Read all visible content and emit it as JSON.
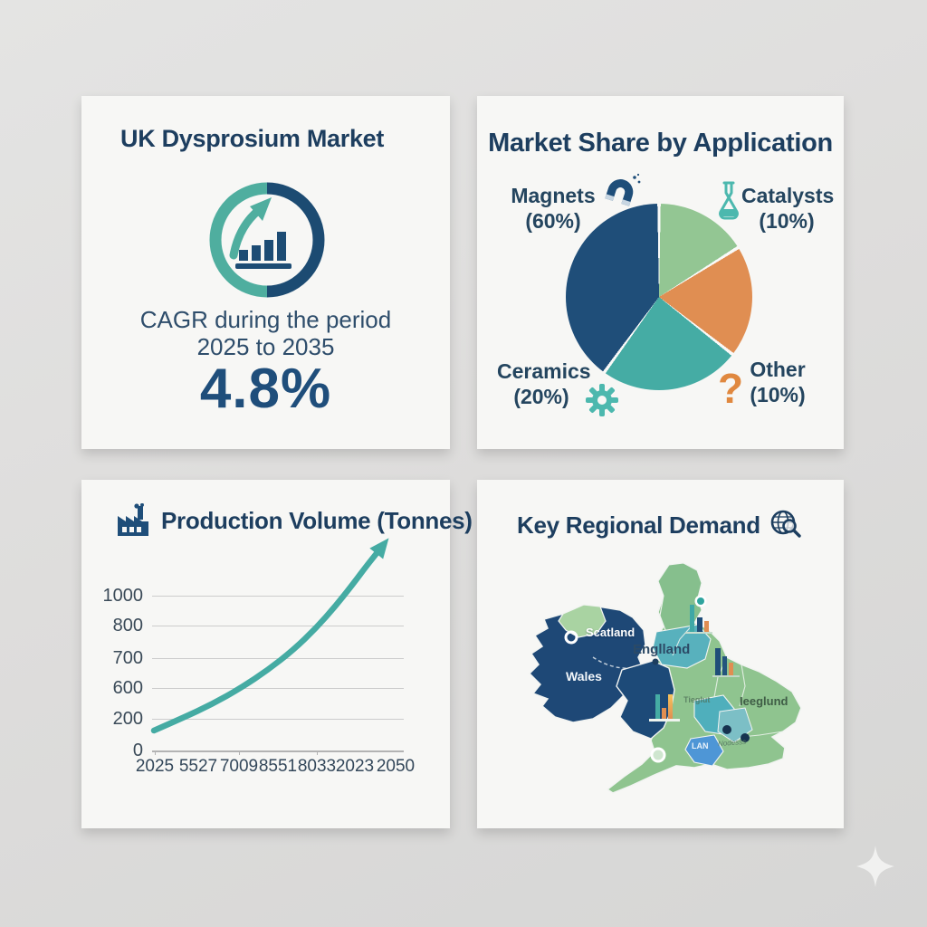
{
  "page": {
    "background": "#dedddc",
    "sparkle_color": "#f1f1f0"
  },
  "colors": {
    "navy": "#1F4E79",
    "teal": "#45ACA4",
    "green": "#93C693",
    "orange": "#E08E52",
    "title_text": "#1D3E5F",
    "panel_bg": "#F7F7F5"
  },
  "panels": {
    "overview": {
      "title": "UK Dysprosium Market",
      "cagr_line1": "CAGR during the period",
      "cagr_line2": "2025 to 2035",
      "cagr_value": "4.8%"
    },
    "market_share": {
      "title": "Market Share by Application",
      "labels": [
        {
          "name": "Magnets",
          "pct": "(60%)",
          "icon": "magnet-icon"
        },
        {
          "name": "Catalysts",
          "pct": "(10%)",
          "icon": "flask-icon"
        },
        {
          "name": "Ceramics",
          "pct": "(20%)",
          "icon": "gear-icon"
        },
        {
          "name": "Other",
          "pct": "(10%)",
          "icon": "question-icon",
          "icon_char": "?"
        }
      ]
    },
    "production": {
      "title": "Production Volume (Tonnes)"
    },
    "regional": {
      "title": "Key Regional Demand",
      "map_labels": [
        "Scatland",
        "Wales",
        "Englland",
        "Ieeglund",
        "Tieglut",
        "Nodesss",
        "LAN"
      ]
    }
  },
  "chart_data": [
    {
      "type": "pie",
      "title": "Market Share by Application",
      "legend_position": "corner labels around pie",
      "slices": [
        {
          "label": "Catalysts",
          "value": 10,
          "color": "#93C693",
          "visual_deg": 58
        },
        {
          "label": "Other",
          "value": 10,
          "color": "#E08E52",
          "visual_deg": 70
        },
        {
          "label": "Ceramics",
          "value": 20,
          "color": "#45ACA4",
          "visual_deg": 88
        },
        {
          "label": "Magnets",
          "value": 60,
          "color": "#1F4E79",
          "visual_deg": 144
        }
      ],
      "separator_color": "#f9f9f8"
    },
    {
      "type": "line",
      "title": "Production Volume (Tonnes)",
      "yticks": [
        "1000",
        "800",
        "700",
        "600",
        "200",
        "0"
      ],
      "xticks": [
        "2025",
        "5527",
        "7009",
        "8551",
        "8033",
        "2023",
        "2050"
      ],
      "ylim": [
        0,
        1000
      ],
      "grid": true,
      "line_color": "#45ABA3",
      "arrow_end": true,
      "curve_points": [
        [
          80,
          277
        ],
        [
          112,
          263
        ],
        [
          144,
          248
        ],
        [
          176,
          230
        ],
        [
          206,
          210
        ],
        [
          234,
          188
        ],
        [
          259,
          164
        ],
        [
          281,
          139
        ],
        [
          300,
          115
        ],
        [
          315,
          95
        ],
        [
          327,
          80
        ]
      ]
    }
  ]
}
